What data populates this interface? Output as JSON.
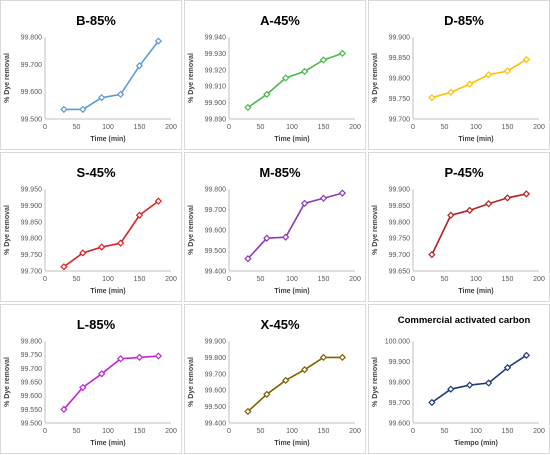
{
  "chart_data": [
    {
      "type": "line",
      "title": "B-85%",
      "xlabel": "Time (min)",
      "ylabel": "% Dye removal",
      "x": [
        30,
        60,
        90,
        120,
        150,
        180
      ],
      "series": [
        {
          "values": [
            99.535,
            99.535,
            99.578,
            99.59,
            99.695,
            99.785
          ]
        }
      ],
      "xlim": [
        0,
        200
      ],
      "ylim": [
        99.5,
        99.8
      ],
      "xticks": [
        "0",
        "50",
        "100",
        "150",
        "200"
      ],
      "yticks": [
        "99.500",
        "99.600",
        "99.700",
        "99.800"
      ],
      "color": "#5b9bd5"
    },
    {
      "type": "line",
      "title": "A-45%",
      "xlabel": "Time (min)",
      "ylabel": "% Dye removal",
      "x": [
        30,
        60,
        90,
        120,
        150,
        180
      ],
      "series": [
        {
          "values": [
            99.897,
            99.905,
            99.915,
            99.919,
            99.926,
            99.93
          ]
        }
      ],
      "xlim": [
        0,
        200
      ],
      "ylim": [
        99.89,
        99.94
      ],
      "xticks": [
        "0",
        "50",
        "100",
        "150",
        "200"
      ],
      "yticks": [
        "99.890",
        "99.900",
        "99.910",
        "99.920",
        "99.930",
        "99.940"
      ],
      "color": "#4cb84c"
    },
    {
      "type": "line",
      "title": "D-85%",
      "xlabel": "Time (min)",
      "ylabel": "% Dye removal",
      "x": [
        30,
        60,
        90,
        120,
        150,
        180
      ],
      "series": [
        {
          "values": [
            99.752,
            99.765,
            99.785,
            99.808,
            99.817,
            99.845
          ]
        }
      ],
      "xlim": [
        0,
        200
      ],
      "ylim": [
        99.7,
        99.9
      ],
      "xticks": [
        "0",
        "50",
        "100",
        "150",
        "200"
      ],
      "yticks": [
        "99.700",
        "99.750",
        "99.800",
        "99.850",
        "99.900"
      ],
      "color": "#ffc000"
    },
    {
      "type": "line",
      "title": "S-45%",
      "xlabel": "Time (min)",
      "ylabel": "% Dye removal",
      "x": [
        30,
        60,
        90,
        120,
        150,
        180
      ],
      "series": [
        {
          "values": [
            99.713,
            99.755,
            99.773,
            99.785,
            99.87,
            99.913
          ]
        }
      ],
      "xlim": [
        0,
        200
      ],
      "ylim": [
        99.7,
        99.95
      ],
      "xticks": [
        "0",
        "50",
        "100",
        "150",
        "200"
      ],
      "yticks": [
        "99.700",
        "99.750",
        "99.800",
        "99.850",
        "99.900",
        "99.950"
      ],
      "color": "#e02020"
    },
    {
      "type": "line",
      "title": "M-85%",
      "xlabel": "Time (min)",
      "ylabel": "% Dye removal",
      "x": [
        30,
        60,
        90,
        120,
        150,
        180
      ],
      "series": [
        {
          "values": [
            99.46,
            99.56,
            99.565,
            99.73,
            99.755,
            99.78
          ]
        }
      ],
      "xlim": [
        0,
        200
      ],
      "ylim": [
        99.4,
        99.8
      ],
      "xticks": [
        "0",
        "50",
        "100",
        "150",
        "200"
      ],
      "yticks": [
        "99.400",
        "99.500",
        "99.600",
        "99.700",
        "99.800"
      ],
      "color": "#8e3ab5"
    },
    {
      "type": "line",
      "title": "P-45%",
      "xlabel": "Time (min)",
      "ylabel": "% Dye removal",
      "x": [
        30,
        60,
        90,
        120,
        150,
        180
      ],
      "series": [
        {
          "values": [
            99.7,
            99.82,
            99.835,
            99.855,
            99.873,
            99.885
          ]
        }
      ],
      "xlim": [
        0,
        200
      ],
      "ylim": [
        99.65,
        99.9
      ],
      "xticks": [
        "0",
        "50",
        "100",
        "150",
        "200"
      ],
      "yticks": [
        "99.650",
        "99.700",
        "99.750",
        "99.800",
        "99.850",
        "99.900"
      ],
      "color": "#b22222"
    },
    {
      "type": "line",
      "title": "L-85%",
      "xlabel": "Time (min)",
      "ylabel": "% Dye removal",
      "x": [
        30,
        60,
        90,
        120,
        150,
        180
      ],
      "series": [
        {
          "values": [
            99.55,
            99.63,
            99.68,
            99.735,
            99.74,
            99.745
          ]
        }
      ],
      "xlim": [
        0,
        200
      ],
      "ylim": [
        99.5,
        99.8
      ],
      "xticks": [
        "0",
        "50",
        "100",
        "150",
        "200"
      ],
      "yticks": [
        "99.500",
        "99.550",
        "99.600",
        "99.650",
        "99.700",
        "99.750",
        "99.800"
      ],
      "color": "#c026d3"
    },
    {
      "type": "line",
      "title": "X-45%",
      "xlabel": "Time (min)",
      "ylabel": "% Dye removal",
      "x": [
        30,
        60,
        90,
        120,
        150,
        180
      ],
      "series": [
        {
          "values": [
            99.47,
            99.575,
            99.66,
            99.725,
            99.8,
            99.8
          ]
        }
      ],
      "xlim": [
        0,
        200
      ],
      "ylim": [
        99.4,
        99.9
      ],
      "xticks": [
        "0",
        "50",
        "100",
        "150",
        "200"
      ],
      "yticks": [
        "99.400",
        "99.500",
        "99.600",
        "99.700",
        "99.800",
        "99.900"
      ],
      "color": "#7f6000"
    },
    {
      "type": "line",
      "title": "Commercial activated carbon",
      "xlabel": "Tiempo (min)",
      "ylabel": "% Dye removal",
      "x": [
        30,
        60,
        90,
        120,
        150,
        180
      ],
      "series": [
        {
          "values": [
            99.7,
            99.765,
            99.785,
            99.795,
            99.87,
            99.93
          ]
        }
      ],
      "xlim": [
        0,
        200
      ],
      "ylim": [
        99.6,
        100.0
      ],
      "xticks": [
        "0",
        "50",
        "100",
        "150",
        "200"
      ],
      "yticks": [
        "99.600",
        "99.700",
        "99.800",
        "99.900",
        "100.000"
      ],
      "color": "#1f3a7a"
    }
  ]
}
